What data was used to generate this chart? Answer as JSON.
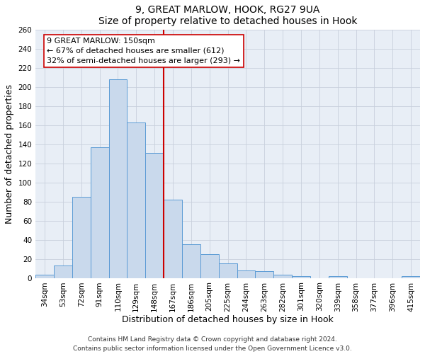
{
  "title": "9, GREAT MARLOW, HOOK, RG27 9UA",
  "subtitle": "Size of property relative to detached houses in Hook",
  "xlabel": "Distribution of detached houses by size in Hook",
  "ylabel": "Number of detached properties",
  "bar_color": "#c9d9ec",
  "bar_edge_color": "#5b9bd5",
  "categories": [
    "34sqm",
    "53sqm",
    "72sqm",
    "91sqm",
    "110sqm",
    "129sqm",
    "148sqm",
    "167sqm",
    "186sqm",
    "205sqm",
    "225sqm",
    "244sqm",
    "263sqm",
    "282sqm",
    "301sqm",
    "320sqm",
    "339sqm",
    "358sqm",
    "377sqm",
    "396sqm",
    "415sqm"
  ],
  "values": [
    3,
    13,
    85,
    137,
    208,
    163,
    131,
    82,
    35,
    25,
    15,
    8,
    7,
    3,
    2,
    0,
    2,
    0,
    0,
    0,
    2
  ],
  "vline_x_index": 6,
  "vline_color": "#cc0000",
  "annotation_line1": "9 GREAT MARLOW: 150sqm",
  "annotation_line2": "← 67% of detached houses are smaller (612)",
  "annotation_line3": "32% of semi-detached houses are larger (293) →",
  "annotation_box_facecolor": "#ffffff",
  "annotation_box_edgecolor": "#cc0000",
  "ylim": [
    0,
    260
  ],
  "yticks": [
    0,
    20,
    40,
    60,
    80,
    100,
    120,
    140,
    160,
    180,
    200,
    220,
    240,
    260
  ],
  "footnote1": "Contains HM Land Registry data © Crown copyright and database right 2024.",
  "footnote2": "Contains public sector information licensed under the Open Government Licence v3.0.",
  "bg_color": "#e8eef6",
  "fig_bg_color": "#ffffff",
  "grid_color": "#c8d0dc",
  "title_fontsize": 10,
  "subtitle_fontsize": 9,
  "axis_label_fontsize": 9,
  "tick_fontsize": 7.5,
  "footnote_fontsize": 6.5
}
